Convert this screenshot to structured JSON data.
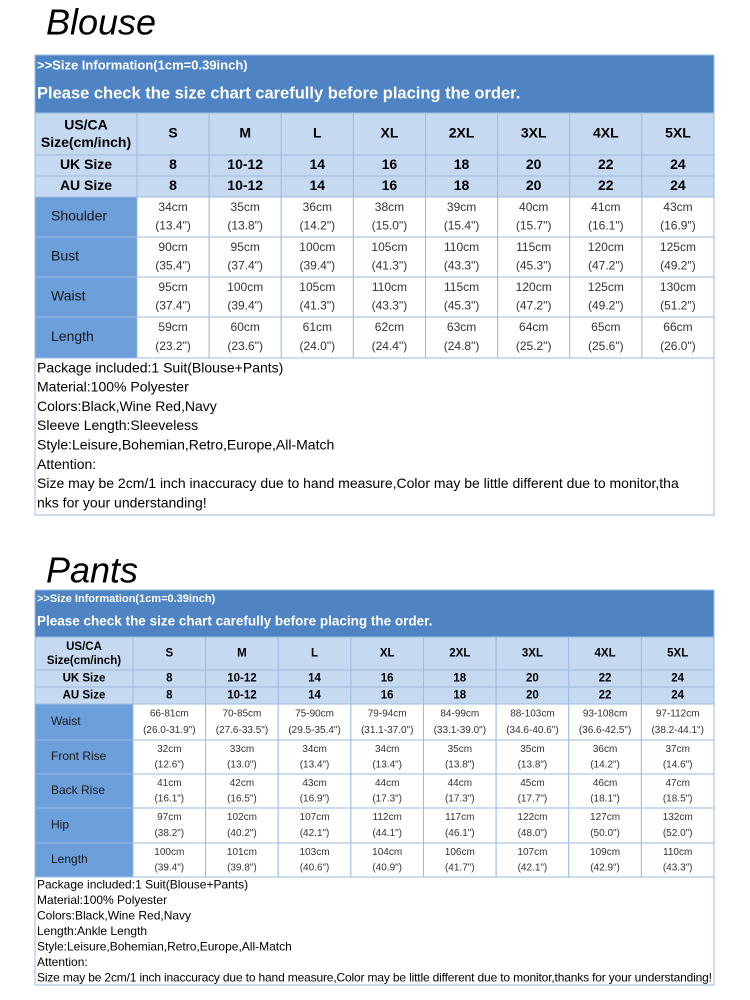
{
  "blouse": {
    "title": "Blouse",
    "info": ">>Size Information(1cm=0.39inch)",
    "notice": "Please check the size chart carefully before placing the order.",
    "table": {
      "header": [
        "US/CA",
        "Size(cm/inch)"
      ],
      "sizes": [
        "S",
        "M",
        "L",
        "XL",
        "2XL",
        "3XL",
        "4XL",
        "5XL"
      ],
      "uk": {
        "label": "UK Size",
        "values": [
          "8",
          "10-12",
          "14",
          "16",
          "18",
          "20",
          "22",
          "24"
        ]
      },
      "au": {
        "label": "AU Size",
        "values": [
          "8",
          "10-12",
          "14",
          "16",
          "18",
          "20",
          "22",
          "24"
        ]
      },
      "rows": [
        {
          "label": "Shoulder",
          "values": [
            [
              "34cm",
              "(13.4\")"
            ],
            [
              "35cm",
              "(13.8\")"
            ],
            [
              "36cm",
              "(14.2\")"
            ],
            [
              "38cm",
              "(15.0\")"
            ],
            [
              "39cm",
              "(15.4\")"
            ],
            [
              "40cm",
              "(15.7\")"
            ],
            [
              "41cm",
              "(16.1\")"
            ],
            [
              "43cm",
              "(16.9\")"
            ]
          ]
        },
        {
          "label": "Bust",
          "values": [
            [
              "90cm",
              "(35.4\")"
            ],
            [
              "95cm",
              "(37.4\")"
            ],
            [
              "100cm",
              "(39.4\")"
            ],
            [
              "105cm",
              "(41.3\")"
            ],
            [
              "110cm",
              "(43.3\")"
            ],
            [
              "115cm",
              "(45.3\")"
            ],
            [
              "120cm",
              "(47.2\")"
            ],
            [
              "125cm",
              "(49.2\")"
            ]
          ]
        },
        {
          "label": "Waist",
          "values": [
            [
              "95cm",
              "(37.4\")"
            ],
            [
              "100cm",
              "(39.4\")"
            ],
            [
              "105cm",
              "(41.3\")"
            ],
            [
              "110cm",
              "(43.3\")"
            ],
            [
              "115cm",
              "(45.3\")"
            ],
            [
              "120cm",
              "(47.2\")"
            ],
            [
              "125cm",
              "(49.2\")"
            ],
            [
              "130cm",
              "(51.2\")"
            ]
          ]
        },
        {
          "label": "Length",
          "values": [
            [
              "59cm",
              "(23.2\")"
            ],
            [
              "60cm",
              "(23.6\")"
            ],
            [
              "61cm",
              "(24.0\")"
            ],
            [
              "62cm",
              "(24.4\")"
            ],
            [
              "63cm",
              "(24.8\")"
            ],
            [
              "64cm",
              "(25.2\")"
            ],
            [
              "65cm",
              "(25.6\")"
            ],
            [
              "66cm",
              "(26.0\")"
            ]
          ]
        }
      ]
    },
    "notes": [
      "Package included:1 Suit(Blouse+Pants)",
      "Material:100% Polyester",
      "Colors:Black,Wine Red,Navy",
      "Sleeve Length:Sleeveless",
      "Style:Leisure,Bohemian,Retro,Europe,All-Match",
      "Attention:",
      "Size may be 2cm/1 inch inaccuracy due to hand measure,Color may be little different due to monitor,tha",
      "nks for your understanding!"
    ]
  },
  "pants": {
    "title": "Pants",
    "info": ">>Size Information(1cm=0.39inch)",
    "notice": "Please check the size chart carefully before placing the order.",
    "table": {
      "header": [
        "US/CA",
        "Size(cm/inch)"
      ],
      "sizes": [
        "S",
        "M",
        "L",
        "XL",
        "2XL",
        "3XL",
        "4XL",
        "5XL"
      ],
      "uk": {
        "label": "UK Size",
        "values": [
          "8",
          "10-12",
          "14",
          "16",
          "18",
          "20",
          "22",
          "24"
        ]
      },
      "au": {
        "label": "AU Size",
        "values": [
          "8",
          "10-12",
          "14",
          "16",
          "18",
          "20",
          "22",
          "24"
        ]
      },
      "rows": [
        {
          "label": "Waist",
          "values": [
            [
              "66-81cm",
              "(26.0-31.9\")"
            ],
            [
              "70-85cm",
              "(27.6-33.5\")"
            ],
            [
              "75-90cm",
              "(29.5-35.4\")"
            ],
            [
              "79-94cm",
              "(31.1-37.0\")"
            ],
            [
              "84-99cm",
              "(33.1-39.0\")"
            ],
            [
              "88-103cm",
              "(34.6-40.6\")"
            ],
            [
              "93-108cm",
              "(36.6-42.5\")"
            ],
            [
              "97-112cm",
              "(38.2-44.1\")"
            ]
          ]
        },
        {
          "label": "Front Rise",
          "values": [
            [
              "32cm",
              "(12.6\")"
            ],
            [
              "33cm",
              "(13.0\")"
            ],
            [
              "34cm",
              "(13.4\")"
            ],
            [
              "34cm",
              "(13.4\")"
            ],
            [
              "35cm",
              "(13.8\")"
            ],
            [
              "35cm",
              "(13.8\")"
            ],
            [
              "36cm",
              "(14.2\")"
            ],
            [
              "37cm",
              "(14.6\")"
            ]
          ]
        },
        {
          "label": "Back Rise",
          "values": [
            [
              "41cm",
              "(16.1\")"
            ],
            [
              "42cm",
              "(16.5\")"
            ],
            [
              "43cm",
              "(16.9\")"
            ],
            [
              "44cm",
              "(17.3\")"
            ],
            [
              "44cm",
              "(17.3\")"
            ],
            [
              "45cm",
              "(17.7\")"
            ],
            [
              "46cm",
              "(18.1\")"
            ],
            [
              "47cm",
              "(18.5\")"
            ]
          ]
        },
        {
          "label": "Hip",
          "values": [
            [
              "97cm",
              "(38.2\")"
            ],
            [
              "102cm",
              "(40.2\")"
            ],
            [
              "107cm",
              "(42.1\")"
            ],
            [
              "112cm",
              "(44.1\")"
            ],
            [
              "117cm",
              "(46.1\")"
            ],
            [
              "122cm",
              "(48.0\")"
            ],
            [
              "127cm",
              "(50.0\")"
            ],
            [
              "132cm",
              "(52.0\")"
            ]
          ]
        },
        {
          "label": "Length",
          "values": [
            [
              "100cm",
              "(39.4\")"
            ],
            [
              "101cm",
              "(39.8\")"
            ],
            [
              "103cm",
              "(40.6\")"
            ],
            [
              "104cm",
              "(40.9\")"
            ],
            [
              "106cm",
              "(41.7\")"
            ],
            [
              "107cm",
              "(42.1\")"
            ],
            [
              "109cm",
              "(42.9\")"
            ],
            [
              "110cm",
              "(43.3\")"
            ]
          ]
        }
      ]
    },
    "notes": [
      "Package included:1 Suit(Blouse+Pants)",
      "Material:100% Polyester",
      "Colors:Black,Wine Red,Navy",
      "Length:Ankle Length",
      "Style:Leisure,Bohemian,Retro,Europe,All-Match",
      "Attention:",
      "Size may be 2cm/1 inch inaccuracy due to hand measure,Color may be little different due to monitor,thanks for your understanding!"
    ]
  }
}
